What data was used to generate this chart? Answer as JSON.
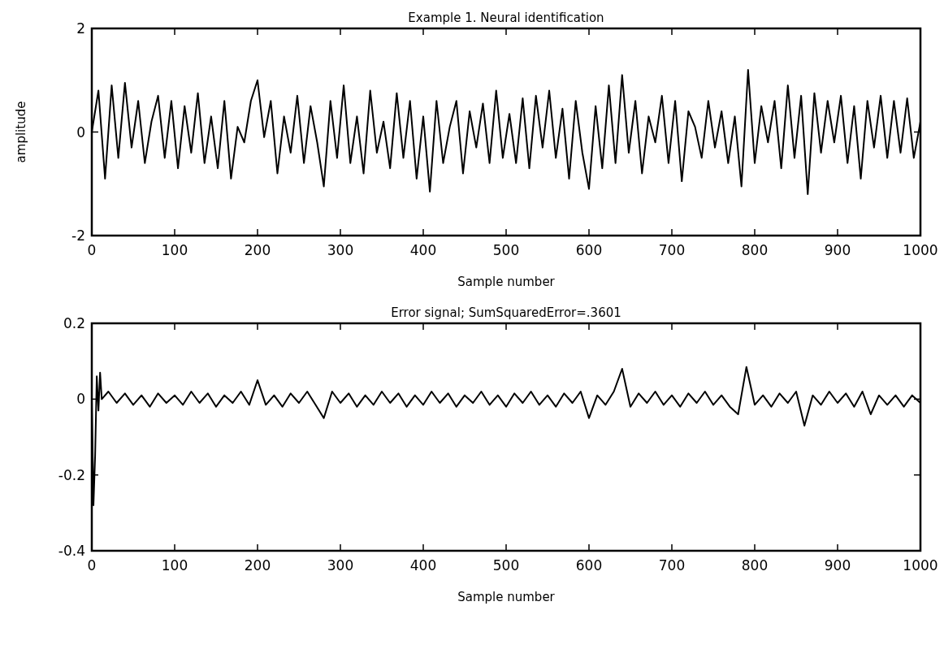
{
  "chart_data": [
    {
      "type": "line",
      "title": "Example 1. Neural identification",
      "xlabel": "Sample number",
      "ylabel": "amplitude",
      "xlim": [
        0,
        1000
      ],
      "xticks": [
        0,
        100,
        200,
        300,
        400,
        500,
        600,
        700,
        800,
        900,
        1000
      ],
      "ylim": [
        -2,
        2
      ],
      "yticks": [
        -2,
        0,
        2
      ],
      "grid": false,
      "series": [
        {
          "color": "#000000",
          "x": [
            0,
            8,
            16,
            24,
            32,
            40,
            48,
            56,
            64,
            72,
            80,
            88,
            96,
            104,
            112,
            120,
            128,
            136,
            144,
            152,
            160,
            168,
            176,
            184,
            192,
            200,
            208,
            216,
            224,
            232,
            240,
            248,
            256,
            264,
            272,
            280,
            288,
            296,
            304,
            312,
            320,
            328,
            336,
            344,
            352,
            360,
            368,
            376,
            384,
            392,
            400,
            408,
            416,
            424,
            432,
            440,
            448,
            456,
            464,
            472,
            480,
            488,
            496,
            504,
            512,
            520,
            528,
            536,
            544,
            552,
            560,
            568,
            576,
            584,
            592,
            600,
            608,
            616,
            624,
            632,
            640,
            648,
            656,
            664,
            672,
            680,
            688,
            696,
            704,
            712,
            720,
            728,
            736,
            744,
            752,
            760,
            768,
            776,
            784,
            792,
            800,
            808,
            816,
            824,
            832,
            840,
            848,
            856,
            864,
            872,
            880,
            888,
            896,
            904,
            912,
            920,
            928,
            936,
            944,
            952,
            960,
            968,
            976,
            984,
            992,
            1000
          ],
          "values": [
            0,
            0.8,
            -0.9,
            0.9,
            -0.5,
            0.95,
            -0.3,
            0.6,
            -0.6,
            0.2,
            0.7,
            -0.5,
            0.6,
            -0.7,
            0.5,
            -0.4,
            0.75,
            -0.6,
            0.3,
            -0.7,
            0.6,
            -0.9,
            0.1,
            -0.2,
            0.6,
            1.0,
            -0.1,
            0.6,
            -0.8,
            0.3,
            -0.4,
            0.7,
            -0.6,
            0.5,
            -0.2,
            -1.05,
            0.6,
            -0.5,
            0.9,
            -0.6,
            0.3,
            -0.8,
            0.8,
            -0.4,
            0.2,
            -0.7,
            0.75,
            -0.5,
            0.6,
            -0.9,
            0.3,
            -1.15,
            0.6,
            -0.6,
            0.1,
            0.6,
            -0.8,
            0.4,
            -0.3,
            0.55,
            -0.6,
            0.8,
            -0.5,
            0.35,
            -0.6,
            0.65,
            -0.7,
            0.7,
            -0.3,
            0.8,
            -0.5,
            0.45,
            -0.9,
            0.6,
            -0.4,
            -1.1,
            0.5,
            -0.7,
            0.9,
            -0.6,
            1.1,
            -0.4,
            0.6,
            -0.8,
            0.3,
            -0.2,
            0.7,
            -0.6,
            0.6,
            -0.95,
            0.4,
            0.1,
            -0.5,
            0.6,
            -0.3,
            0.4,
            -0.6,
            0.3,
            -1.05,
            1.2,
            -0.6,
            0.5,
            -0.2,
            0.6,
            -0.7,
            0.9,
            -0.5,
            0.7,
            -1.2,
            0.75,
            -0.4,
            0.6,
            -0.2,
            0.7,
            -0.6,
            0.5,
            -0.9,
            0.6,
            -0.3,
            0.7,
            -0.5,
            0.6,
            -0.4,
            0.65,
            -0.5,
            0.2
          ]
        }
      ]
    },
    {
      "type": "line",
      "title": "Error signal; SumSquaredError=.3601",
      "xlabel": "Sample number",
      "xlim": [
        0,
        1000
      ],
      "xticks": [
        0,
        100,
        200,
        300,
        400,
        500,
        600,
        700,
        800,
        900,
        1000
      ],
      "ylim": [
        -0.4,
        0.2
      ],
      "yticks": [
        -0.4,
        -0.2,
        0,
        0.2
      ],
      "grid": false,
      "series": [
        {
          "color": "#000000",
          "x": [
            0,
            2,
            4,
            6,
            8,
            10,
            12,
            20,
            30,
            40,
            50,
            60,
            70,
            80,
            90,
            100,
            110,
            120,
            130,
            140,
            150,
            160,
            170,
            180,
            190,
            200,
            210,
            220,
            230,
            240,
            250,
            260,
            270,
            280,
            290,
            300,
            310,
            320,
            330,
            340,
            350,
            360,
            370,
            380,
            390,
            400,
            410,
            420,
            430,
            440,
            450,
            460,
            470,
            480,
            490,
            500,
            510,
            520,
            530,
            540,
            550,
            560,
            570,
            580,
            590,
            600,
            610,
            620,
            630,
            640,
            650,
            660,
            670,
            680,
            690,
            700,
            710,
            720,
            730,
            740,
            750,
            760,
            770,
            780,
            790,
            800,
            810,
            820,
            830,
            840,
            850,
            860,
            870,
            880,
            890,
            900,
            910,
            920,
            930,
            940,
            950,
            960,
            970,
            980,
            990,
            1000
          ],
          "values": [
            0,
            -0.28,
            -0.15,
            0.06,
            -0.03,
            0.07,
            0,
            0.02,
            -0.01,
            0.015,
            -0.015,
            0.01,
            -0.02,
            0.015,
            -0.01,
            0.01,
            -0.015,
            0.02,
            -0.01,
            0.015,
            -0.02,
            0.01,
            -0.01,
            0.02,
            -0.015,
            0.05,
            -0.015,
            0.01,
            -0.02,
            0.015,
            -0.01,
            0.02,
            -0.015,
            -0.05,
            0.02,
            -0.01,
            0.015,
            -0.02,
            0.01,
            -0.015,
            0.02,
            -0.01,
            0.015,
            -0.02,
            0.01,
            -0.015,
            0.02,
            -0.01,
            0.015,
            -0.02,
            0.01,
            -0.01,
            0.02,
            -0.015,
            0.01,
            -0.02,
            0.015,
            -0.01,
            0.02,
            -0.015,
            0.01,
            -0.02,
            0.015,
            -0.01,
            0.02,
            -0.05,
            0.01,
            -0.015,
            0.02,
            0.08,
            -0.02,
            0.015,
            -0.01,
            0.02,
            -0.015,
            0.01,
            -0.02,
            0.015,
            -0.01,
            0.02,
            -0.015,
            0.01,
            -0.02,
            -0.04,
            0.085,
            -0.015,
            0.01,
            -0.02,
            0.015,
            -0.01,
            0.02,
            -0.07,
            0.01,
            -0.015,
            0.02,
            -0.01,
            0.015,
            -0.02,
            0.02,
            -0.04,
            0.01,
            -0.015,
            0.01,
            -0.02,
            0.01,
            -0.01
          ]
        }
      ]
    }
  ]
}
